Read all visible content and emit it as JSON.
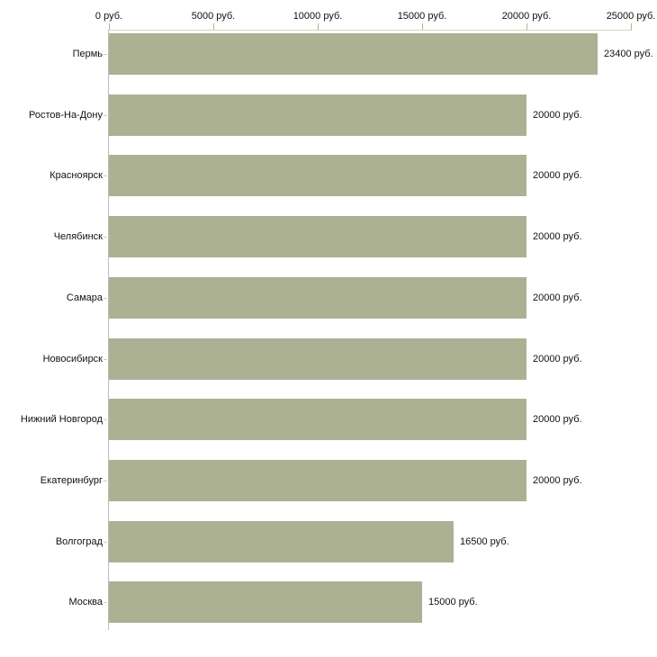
{
  "chart_data": {
    "type": "bar",
    "orientation": "horizontal",
    "title": "",
    "xlabel": "",
    "ylabel": "",
    "unit": "руб.",
    "categories": [
      "Пермь",
      "Ростов-На-Дону",
      "Красноярск",
      "Челябинск",
      "Самара",
      "Новосибирск",
      "Нижний Новгород",
      "Екатеринбург",
      "Волгоград",
      "Москва"
    ],
    "values": [
      23400,
      20000,
      20000,
      20000,
      20000,
      20000,
      20000,
      20000,
      16500,
      15000
    ],
    "value_labels": [
      "23400 руб.",
      "20000 руб.",
      "20000 руб.",
      "20000 руб.",
      "20000 руб.",
      "20000 руб.",
      "20000 руб.",
      "20000 руб.",
      "16500 руб.",
      "15000 руб."
    ],
    "xlim": [
      0,
      25000
    ],
    "x_ticks": [
      0,
      5000,
      10000,
      15000,
      20000,
      25000
    ],
    "x_tick_labels": [
      "0 руб.",
      "5000 руб.",
      "10000 руб.",
      "15000 руб.",
      "20000 руб.",
      "25000 руб."
    ],
    "grid": "off",
    "legend": "none",
    "bar_label_position": "right-outside",
    "axis_position": "top"
  },
  "colors": {
    "bar": "#acb194",
    "x_axis_line": "#d6d6c0",
    "x_tick": "#b3b38c",
    "y_axis_line": "#bdbdbd",
    "y_tick": "#cdcdb4",
    "text": "#111111",
    "background": "#ffffff"
  }
}
